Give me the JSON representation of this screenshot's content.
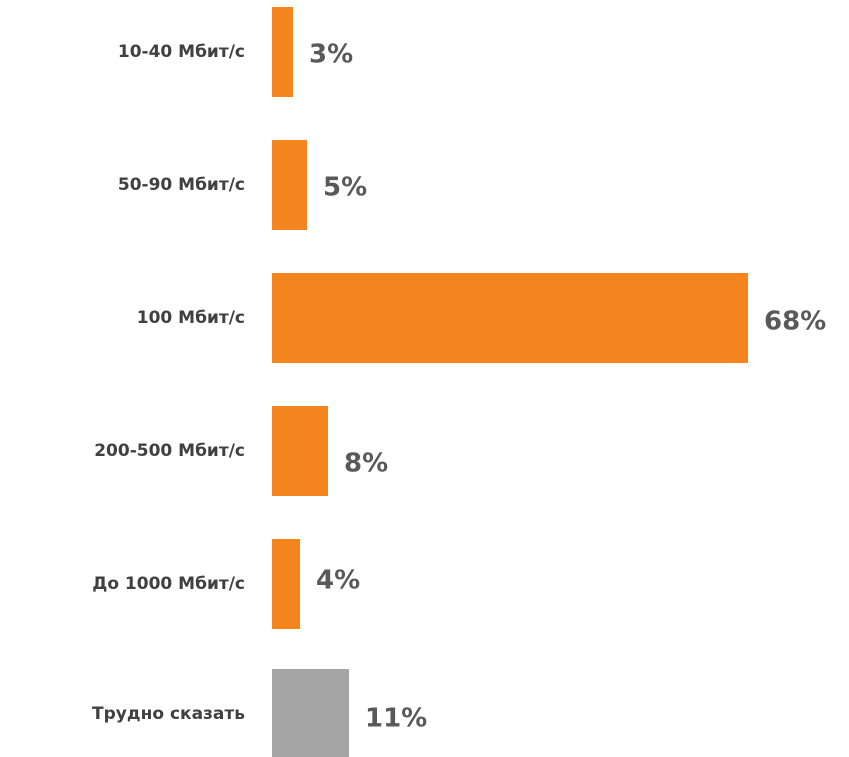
{
  "chart_data": {
    "type": "barh",
    "categories": [
      "10-40 Мбит/с",
      "50-90 Мбит/с",
      "100 Мбит/с",
      "200-500 Мбит/с",
      "До 1000 Мбит/с",
      "Трудно сказать"
    ],
    "values": [
      3,
      5,
      68,
      8,
      4,
      11
    ],
    "value_labels": [
      "3%",
      "5%",
      "68%",
      "8%",
      "4%",
      "11%"
    ],
    "colors": [
      "#f5861f",
      "#f5861f",
      "#f5861f",
      "#f5861f",
      "#f5861f",
      "#a5a5a5"
    ]
  }
}
